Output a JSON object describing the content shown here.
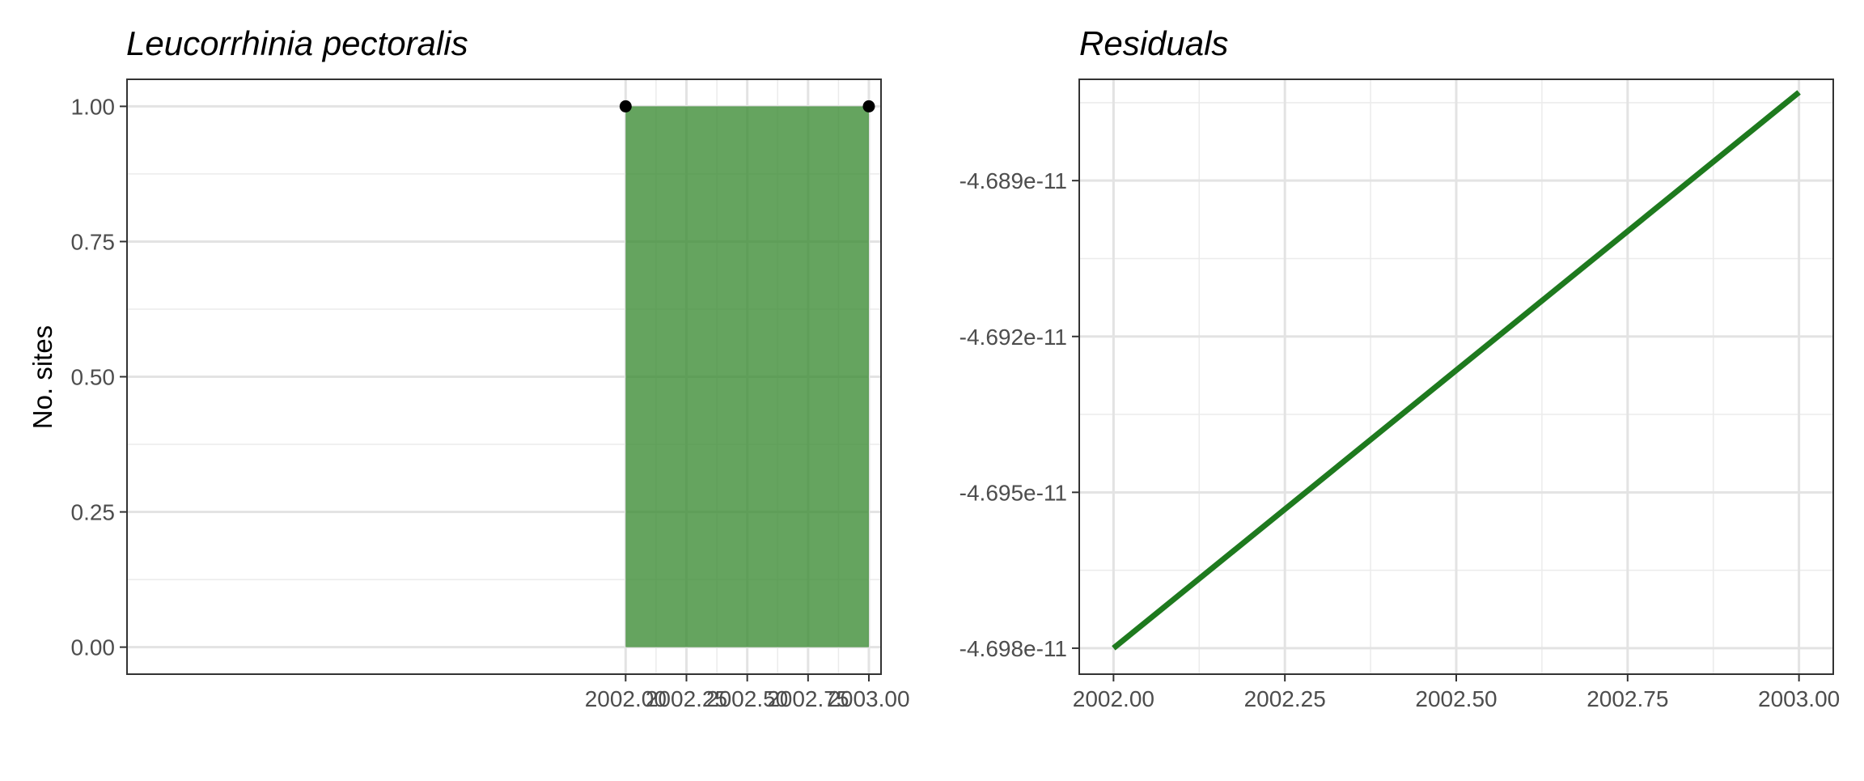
{
  "chart_data": [
    {
      "type": "area",
      "title": "Leucorrhinia pectoralis",
      "xlabel": "",
      "ylabel": "No. sites",
      "xlim": [
        1999.95,
        2003.05
      ],
      "ylim": [
        -0.05,
        1.05
      ],
      "x_ticks": [
        2002.0,
        2002.25,
        2002.5,
        2002.75,
        2003.0
      ],
      "x_tick_labels": [
        "2002.00",
        "2002.25",
        "2002.50",
        "2002.75",
        "2003.00"
      ],
      "y_ticks": [
        0.0,
        0.25,
        0.5,
        0.75,
        1.0
      ],
      "y_tick_labels": [
        "0.00",
        "0.25",
        "0.50",
        "0.75",
        "1.00"
      ],
      "grid": true,
      "series": [
        {
          "x": [
            2002,
            2003
          ],
          "y": [
            1,
            1
          ],
          "color": "#3a8a32",
          "opacity": 0.78,
          "markers": true,
          "marker_color": "#000000"
        }
      ]
    },
    {
      "type": "line",
      "title": "Residuals",
      "xlabel": "",
      "ylabel": "",
      "xlim": [
        2001.95,
        2003.05
      ],
      "ylim": [
        -4.6985e-11,
        -4.68705e-11
      ],
      "x_ticks": [
        2002.0,
        2002.25,
        2002.5,
        2002.75,
        2003.0
      ],
      "x_tick_labels": [
        "2002.00",
        "2002.25",
        "2002.50",
        "2002.75",
        "2003.00"
      ],
      "y_ticks": [
        -4.698e-11,
        -4.695e-11,
        -4.692e-11,
        -4.689e-11
      ],
      "y_tick_labels": [
        "-4.698e-11",
        "-4.695e-11",
        "-4.692e-11",
        "-4.689e-11"
      ],
      "grid": true,
      "series": [
        {
          "x": [
            2002,
            2003
          ],
          "y": [
            -4.698e-11,
            -4.6873e-11
          ],
          "color": "#1e7a1e"
        }
      ]
    }
  ]
}
